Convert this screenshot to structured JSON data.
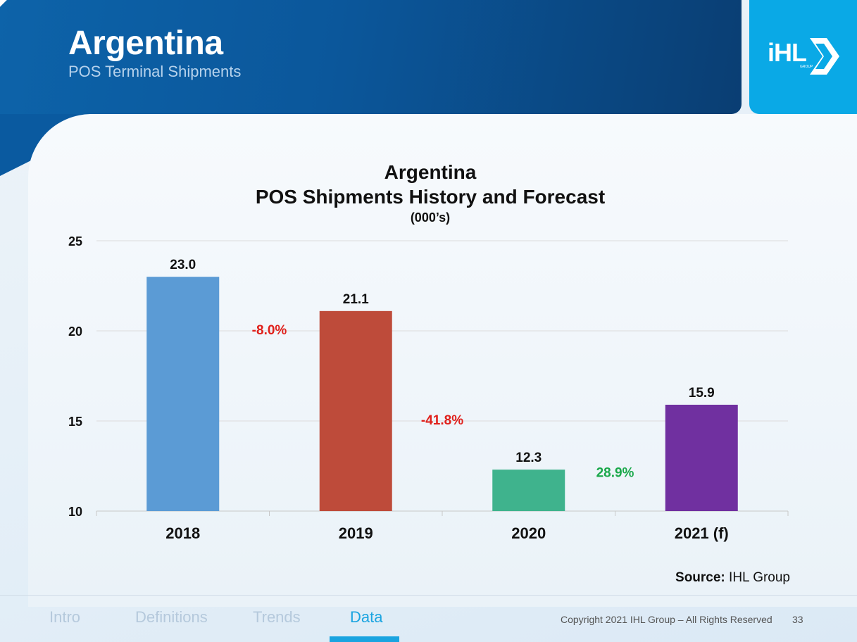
{
  "header": {
    "title": "Argentina",
    "subtitle": "POS Terminal Shipments"
  },
  "logo": {
    "text": "iHL",
    "small_text": "GROUP"
  },
  "chart_data": {
    "type": "bar",
    "title_line1": "Argentina",
    "title_line2": "POS Shipments History and Forecast",
    "subtitle": "(000’s)",
    "categories": [
      "2018",
      "2019",
      "2020",
      "2021 (f)"
    ],
    "values": [
      23.0,
      21.1,
      12.3,
      15.9
    ],
    "value_labels": [
      "23.0",
      "21.1",
      "12.3",
      "15.9"
    ],
    "bar_colors": [
      "#5b9bd5",
      "#be4b3a",
      "#3fb38d",
      "#7030a0"
    ],
    "ylim": [
      10,
      25
    ],
    "yticks": [
      10,
      15,
      20,
      25
    ],
    "grid": true,
    "growth_annotations": [
      {
        "label": "-8.0%",
        "between": [
          0,
          1
        ],
        "color": "#e0201b",
        "value": 19.8
      },
      {
        "label": "-41.8%",
        "between": [
          1,
          2
        ],
        "color": "#e0201b",
        "value": 14.8
      },
      {
        "label": "28.9%",
        "between": [
          2,
          3
        ],
        "color": "#1aa84a",
        "value": 11.9
      }
    ]
  },
  "source": {
    "label": "Source:",
    "value": "IHL Group"
  },
  "footer": {
    "nav": [
      {
        "label": "Intro",
        "active": false
      },
      {
        "label": "Definitions",
        "active": false
      },
      {
        "label": "Trends",
        "active": false
      },
      {
        "label": "Data",
        "active": true
      }
    ],
    "copyright": "Copyright 2021 IHL Group – All Rights Reserved",
    "page_number": "33"
  }
}
